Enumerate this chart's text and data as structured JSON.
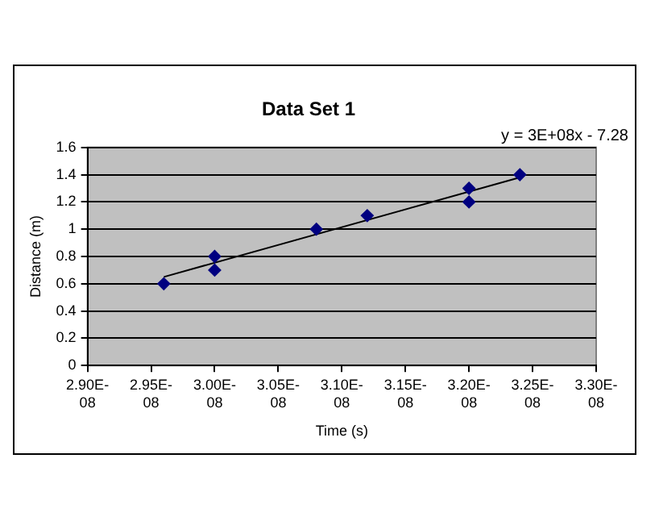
{
  "chart_data": {
    "type": "scatter",
    "title": "Data Set 1",
    "xlabel": "Time (s)",
    "ylabel": "Distance (m)",
    "annotations": [
      "y = 3E+08x - 7.28"
    ],
    "series": [
      {
        "marker": "diamond",
        "color": "#000080",
        "x": [
          2.96e-08,
          3e-08,
          3e-08,
          3.08e-08,
          3.12e-08,
          3.2e-08,
          3.2e-08,
          3.24e-08
        ],
        "values": [
          0.6,
          0.8,
          0.7,
          1.0,
          1.1,
          1.3,
          1.2,
          1.4
        ]
      },
      {
        "type": "line",
        "marker": "none",
        "color": "#000000",
        "x": [
          2.96e-08,
          3.24e-08
        ],
        "values": [
          0.65,
          1.38
        ]
      }
    ],
    "xlim": [
      2.9e-08,
      3.3e-08
    ],
    "xticks": [
      {
        "value": 2.9e-08,
        "label": "2.90E-08"
      },
      {
        "value": 2.95e-08,
        "label": "2.95E-08"
      },
      {
        "value": 3e-08,
        "label": "3.00E-08"
      },
      {
        "value": 3.05e-08,
        "label": "3.05E-08"
      },
      {
        "value": 3.1e-08,
        "label": "3.10E-08"
      },
      {
        "value": 3.15e-08,
        "label": "3.15E-08"
      },
      {
        "value": 3.2e-08,
        "label": "3.20E-08"
      },
      {
        "value": 3.25e-08,
        "label": "3.25E-08"
      },
      {
        "value": 3.3e-08,
        "label": "3.30E-08"
      }
    ],
    "ylim": [
      0,
      1.6
    ],
    "yticks": [
      0,
      0.2,
      0.4,
      0.6,
      0.8,
      1,
      1.2,
      1.4,
      1.6
    ],
    "grid": "y",
    "legend": false
  }
}
